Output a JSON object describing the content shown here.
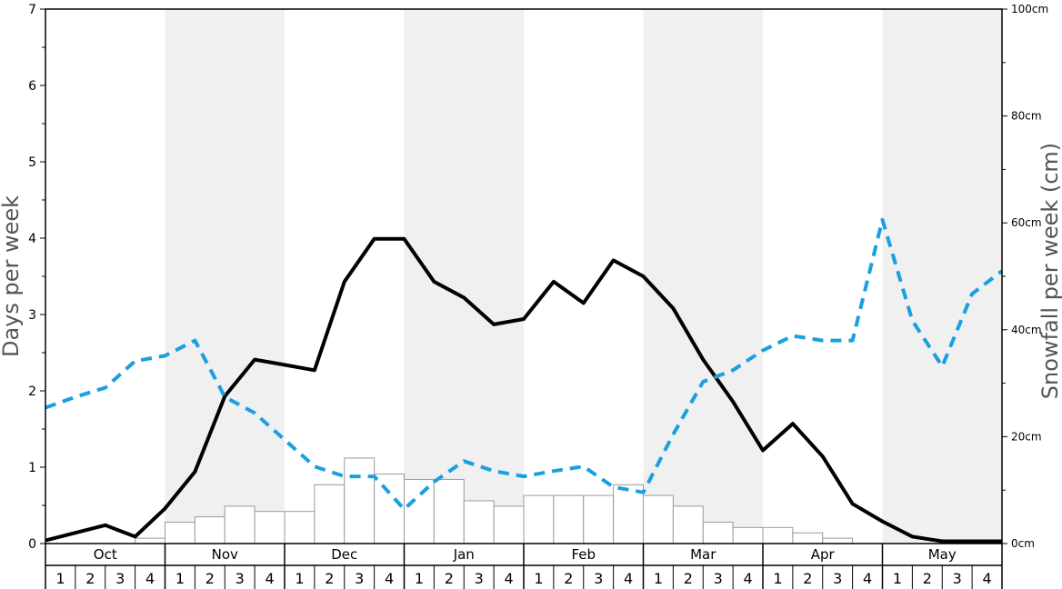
{
  "chart_data": {
    "type": "bar+line",
    "months": [
      "Oct",
      "Nov",
      "Dec",
      "Jan",
      "Feb",
      "Mar",
      "Apr",
      "May"
    ],
    "week_labels": [
      "1",
      "2",
      "3",
      "4"
    ],
    "left_axis": {
      "label": "Days per week",
      "ylim": [
        0,
        7
      ],
      "ticks": [
        "0",
        "1",
        "2",
        "3",
        "4",
        "5",
        "6",
        "7"
      ]
    },
    "right_axis": {
      "label": "Snowfall per week (cm)",
      "ylim": [
        0,
        100
      ],
      "ticks": [
        "0cm",
        "20cm",
        "40cm",
        "60cm",
        "80cm",
        "100cm"
      ]
    },
    "grid": false,
    "colors": {
      "shade": "#f0f0f0",
      "bar_fill": "#ffffff",
      "bar_stroke": "#9a9a9a",
      "solid_line": "#000000",
      "dashed_line": "#1a9fe0"
    },
    "series": [
      {
        "style": "bars",
        "axis": "right",
        "values": [
          0,
          0,
          0,
          1,
          4,
          5,
          7,
          6,
          6,
          11,
          16,
          13,
          12,
          12,
          8,
          7,
          9,
          9,
          9,
          11,
          9,
          7,
          4,
          3,
          3,
          2,
          1,
          0,
          0,
          0,
          0,
          0
        ]
      },
      {
        "style": "solid",
        "axis": "left",
        "values": [
          0.04,
          0.14,
          0.24,
          0.09,
          0.46,
          0.94,
          1.93,
          2.41,
          2.34,
          2.27,
          3.43,
          3.99,
          3.99,
          3.43,
          3.22,
          2.87,
          2.94,
          3.43,
          3.15,
          3.71,
          3.5,
          3.08,
          2.41,
          1.86,
          1.22,
          1.57,
          1.14,
          0.52,
          0.29,
          0.09,
          0.03,
          0.03,
          0.03
        ]
      },
      {
        "style": "dashed",
        "axis": "left",
        "values": [
          1.78,
          1.92,
          2.04,
          2.39,
          2.46,
          2.66,
          1.92,
          1.71,
          1.36,
          1.01,
          0.88,
          0.88,
          0.45,
          0.81,
          1.08,
          0.95,
          0.88,
          0.95,
          1.01,
          0.74,
          0.67,
          1.43,
          2.12,
          2.27,
          2.53,
          2.72,
          2.66,
          2.66,
          4.24,
          2.92,
          2.32,
          3.27,
          3.57
        ]
      }
    ]
  }
}
